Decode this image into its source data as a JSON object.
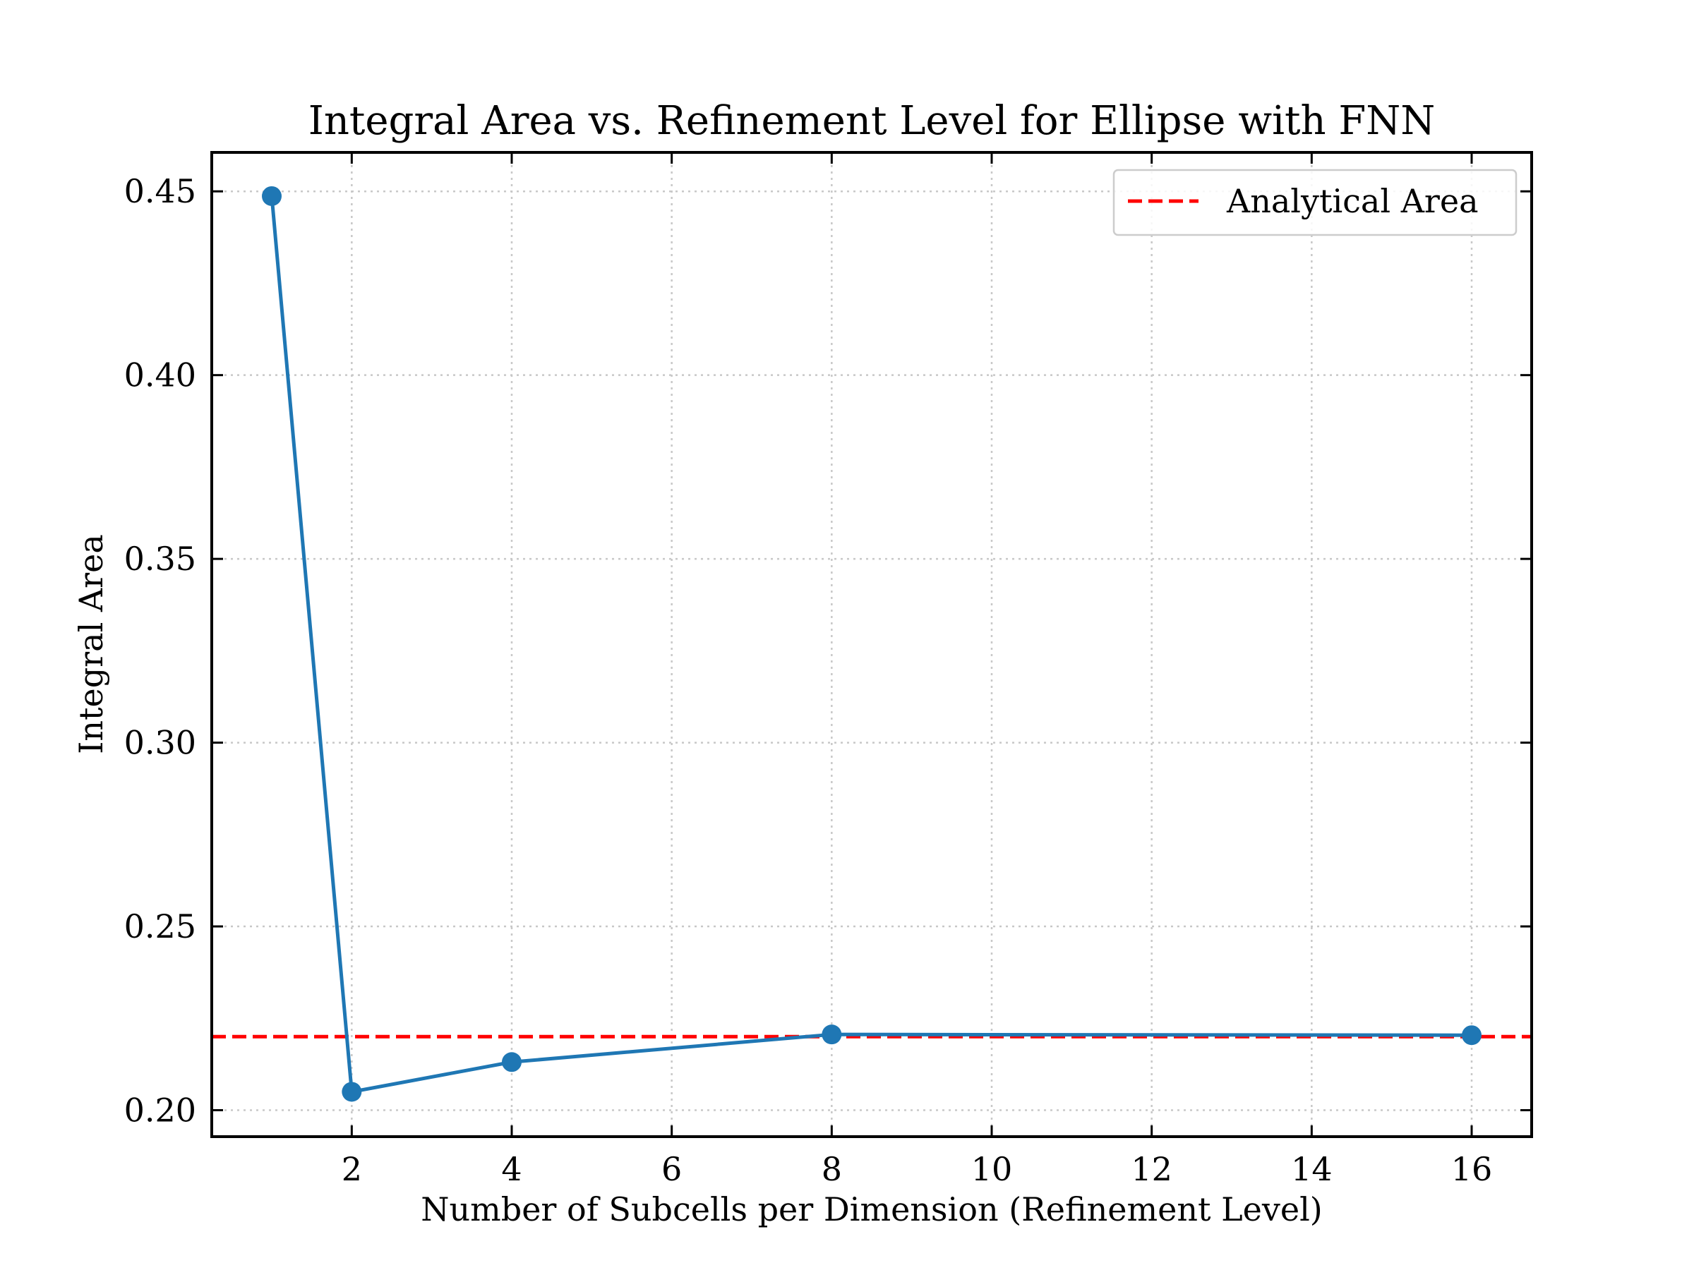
{
  "chart_data": {
    "type": "line",
    "title": "Integral Area vs. Refinement Level for Ellipse with FNN",
    "xlabel": "Number of Subcells per Dimension (Refinement Level)",
    "ylabel": "Integral Area",
    "xlim": [
      0.25,
      16.75
    ],
    "ylim": [
      0.1928,
      0.4606
    ],
    "xticks": [
      2,
      4,
      6,
      8,
      10,
      12,
      14,
      16
    ],
    "xtick_labels": [
      "2",
      "4",
      "6",
      "8",
      "10",
      "12",
      "14",
      "16"
    ],
    "yticks": [
      0.2,
      0.25,
      0.3,
      0.35,
      0.4,
      0.45
    ],
    "ytick_labels": [
      "0.20",
      "0.25",
      "0.30",
      "0.35",
      "0.40",
      "0.45"
    ],
    "grid": true,
    "legend_position": "top-right",
    "series": [
      {
        "x": [
          1,
          2,
          4,
          8,
          16
        ],
        "y": [
          0.4487,
          0.205,
          0.2131,
          0.2206,
          0.2204
        ],
        "color": "#1f77b4",
        "marker": "circle"
      }
    ],
    "reference_lines": [
      {
        "name": "Analytical Area",
        "y": 0.22,
        "color": "#ff0000",
        "style": "dashed"
      }
    ]
  }
}
